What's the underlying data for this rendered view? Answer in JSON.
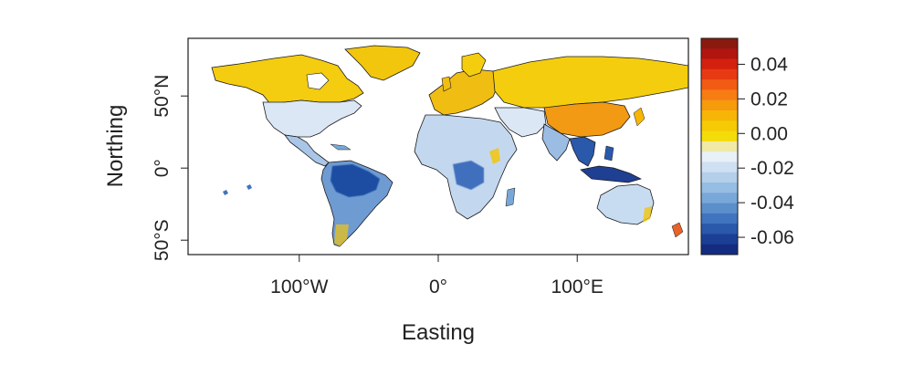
{
  "map": {
    "x_axis_title": "Easting",
    "y_axis_title": "Northing",
    "x_ticks": [
      {
        "value": -100,
        "label": "100°W"
      },
      {
        "value": 0,
        "label": "0°"
      },
      {
        "value": 100,
        "label": "100°E"
      }
    ],
    "y_ticks": [
      {
        "value": 50,
        "label": "50°N"
      },
      {
        "value": 0,
        "label": "0°"
      },
      {
        "value": -50,
        "label": "50°S"
      }
    ],
    "extent": {
      "lon": [
        -180,
        180
      ],
      "lat": [
        -60,
        90
      ]
    },
    "legend": {
      "placement": "right",
      "range": [
        -0.07,
        0.055
      ],
      "ticks": [
        {
          "value": 0.04,
          "label": "0.04"
        },
        {
          "value": 0.02,
          "label": "0.02"
        },
        {
          "value": 0.0,
          "label": "0.00"
        },
        {
          "value": -0.02,
          "label": "-0.02"
        },
        {
          "value": -0.04,
          "label": "-0.04"
        },
        {
          "value": -0.06,
          "label": "-0.06"
        }
      ],
      "colors_top_to_bottom": [
        "#8b1a0e",
        "#b0150f",
        "#d4200f",
        "#e83a12",
        "#f25b14",
        "#f77c14",
        "#f59b0c",
        "#f7b506",
        "#f6ca04",
        "#f4dc0a",
        "#f0e9a8",
        "#e8f0f8",
        "#cfe0f2",
        "#b4cfea",
        "#96bde2",
        "#79a8d8",
        "#5b8fcb",
        "#4074be",
        "#2a58ab",
        "#1c3f96",
        "#132c80"
      ]
    },
    "region_colors": {
      "north_america_north": "#f4cc10",
      "north_america_south": "#dbe7f5",
      "central_america": "#a9c6e8",
      "amazon": "#1f4ea3",
      "south_america_south": "#6f9bd3",
      "greenland": "#f2c60c",
      "europe": "#f0be12",
      "russia": "#f4ce0e",
      "china": "#f29a14",
      "africa": "#c3d8ef",
      "congo": "#3f6fbd",
      "india": "#9cbde3",
      "se_asia": "#1f3f93",
      "australia": "#c8dcf1",
      "border": "#1b1b1b"
    }
  }
}
